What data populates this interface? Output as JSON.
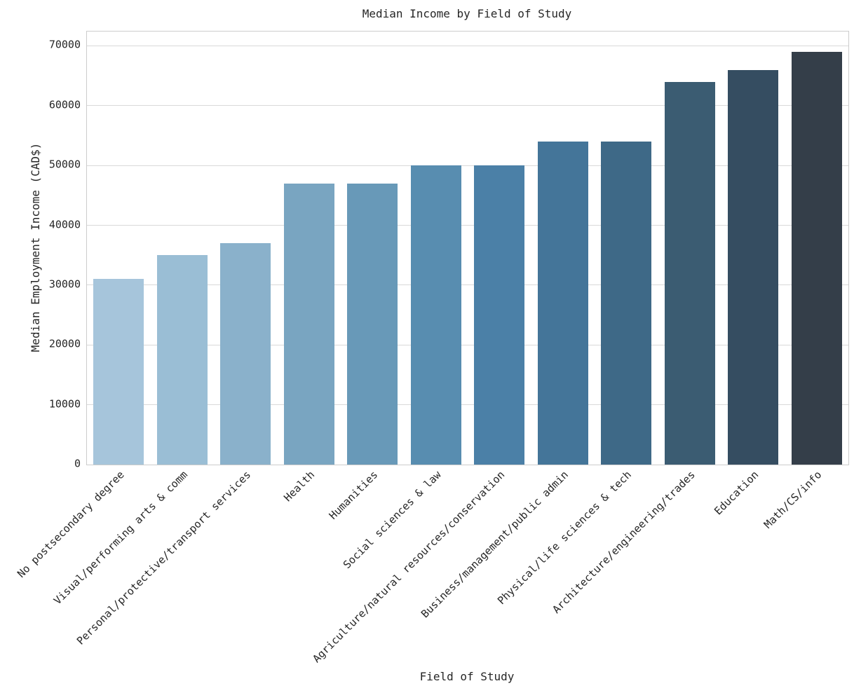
{
  "chart_data": {
    "type": "bar",
    "title": "Median Income by Field of Study",
    "xlabel": "Field of Study",
    "ylabel": "Median Employment Income (CAD$)",
    "categories": [
      "No postsecondary degree",
      "Visual/performing arts & comm",
      "Personal/protective/transport services",
      "Health",
      "Humanities",
      "Social sciences & law",
      "Agriculture/natural resources/conservation",
      "Business/management/public admin",
      "Physical/life sciences & tech",
      "Architecture/engineering/trades",
      "Education",
      "Math/CS/info"
    ],
    "values": [
      31000,
      35000,
      37000,
      47000,
      47000,
      50000,
      50000,
      54000,
      54000,
      64000,
      66000,
      69000
    ],
    "bar_colors": [
      "#a6c5db",
      "#9abed5",
      "#8ab1cb",
      "#79a5c1",
      "#6899b8",
      "#588db0",
      "#4b80a7",
      "#447599",
      "#3e6987",
      "#3b5c72",
      "#354d61",
      "#343e49"
    ],
    "yticks": [
      0,
      10000,
      20000,
      30000,
      40000,
      50000,
      60000,
      70000
    ],
    "ylim": [
      0,
      72400
    ],
    "grid": true,
    "legend": "none",
    "x_tick_rotation_deg": 45
  },
  "colors": {
    "background": "#ffffff",
    "grid": "#d9d9d9",
    "spine": "#cccccc",
    "text": "#262626"
  }
}
